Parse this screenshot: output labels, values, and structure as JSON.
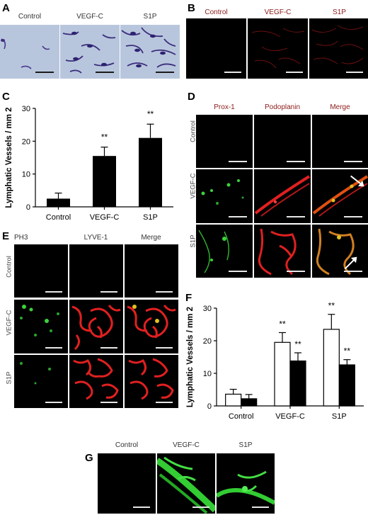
{
  "panels": {
    "A": {
      "letter": "A",
      "columns": [
        "Control",
        "VEGF-C",
        "S1P"
      ]
    },
    "B": {
      "letter": "B",
      "columns": [
        "Control",
        "VEGF-C",
        "S1P"
      ]
    },
    "C": {
      "letter": "C"
    },
    "D": {
      "letter": "D",
      "columns": [
        "Prox-1",
        "Podoplanin",
        "Merge"
      ],
      "rows": [
        "Control",
        "VEGF-C",
        "S1P"
      ]
    },
    "E": {
      "letter": "E",
      "columns": [
        "PH3",
        "LYVE-1",
        "Merge"
      ],
      "rows": [
        "Control",
        "VEGF-C",
        "S1P"
      ]
    },
    "F": {
      "letter": "F"
    },
    "G": {
      "letter": "G",
      "columns": [
        "Control",
        "VEGF-C",
        "S1P"
      ]
    }
  },
  "chart_data": [
    {
      "panel": "C",
      "type": "bar",
      "categories": [
        "Control",
        "VEGF-C",
        "S1P"
      ],
      "values": [
        2.5,
        15.5,
        21
      ],
      "errors": [
        1.7,
        2.7,
        4.2
      ],
      "significance": [
        "",
        "**",
        "**"
      ],
      "ylabel": "Lymphatic Vessels / mm 2",
      "ylim": [
        0,
        30
      ],
      "yticks": [
        0,
        10,
        20,
        30
      ],
      "bar_color": "#000000"
    },
    {
      "panel": "F",
      "type": "bar",
      "categories": [
        "Control",
        "VEGF-C",
        "S1P"
      ],
      "series": [
        {
          "values": [
            3.6,
            19.5,
            23.5
          ],
          "errors": [
            1.5,
            3.0,
            4.6
          ],
          "significance": [
            "",
            "**",
            "**"
          ],
          "color": "#ffffff"
        },
        {
          "values": [
            2.2,
            13.8,
            12.6
          ],
          "errors": [
            1.3,
            2.5,
            1.6
          ],
          "significance": [
            "",
            "**",
            "**"
          ],
          "color": "#000000"
        }
      ],
      "ylabel": "Lymphatic Vessels / mm 2",
      "ylim": [
        0,
        30
      ],
      "yticks": [
        0,
        10,
        20,
        30
      ]
    }
  ]
}
